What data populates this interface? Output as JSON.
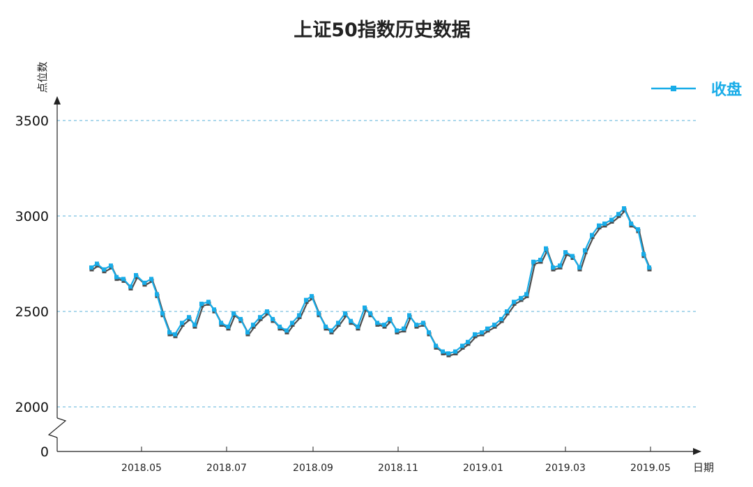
{
  "colors": {
    "series": "#18ace8",
    "shadow": "#4d4d4d",
    "grid": "#5ab2d8",
    "axis": "#222222"
  },
  "chart_data": {
    "type": "line",
    "title": "上证50指数历史数据",
    "ylabel": "点位数",
    "xlabel": "日期",
    "ylim": [
      0,
      3700
    ],
    "y_axis_break": true,
    "y_ticks": [
      0,
      2000,
      2500,
      3000,
      3500
    ],
    "x_ticks": [
      "2018.05",
      "2018.07",
      "2018.09",
      "2018.11",
      "2019.01",
      "2019.03",
      "2019.05"
    ],
    "grid": "horizontal dashed",
    "legend": "top-right",
    "series": [
      {
        "name": "收盘",
        "x": [
          "2018.03.26",
          "2018.03.30",
          "2018.04.04",
          "2018.04.09",
          "2018.04.13",
          "2018.04.18",
          "2018.04.23",
          "2018.04.27",
          "2018.05.03",
          "2018.05.08",
          "2018.05.12",
          "2018.05.16",
          "2018.05.21",
          "2018.05.25",
          "2018.05.30",
          "2018.06.04",
          "2018.06.08",
          "2018.06.13",
          "2018.06.18",
          "2018.06.22",
          "2018.06.27",
          "2018.07.02",
          "2018.07.06",
          "2018.07.11",
          "2018.07.16",
          "2018.07.20",
          "2018.07.25",
          "2018.07.30",
          "2018.08.03",
          "2018.08.08",
          "2018.08.13",
          "2018.08.17",
          "2018.08.22",
          "2018.08.27",
          "2018.08.31",
          "2018.09.05",
          "2018.09.10",
          "2018.09.14",
          "2018.09.19",
          "2018.09.24",
          "2018.09.28",
          "2018.10.03",
          "2018.10.08",
          "2018.10.12",
          "2018.10.17",
          "2018.10.22",
          "2018.10.26",
          "2018.10.31",
          "2018.11.05",
          "2018.11.09",
          "2018.11.14",
          "2018.11.19",
          "2018.11.23",
          "2018.11.28",
          "2018.12.03",
          "2018.12.07",
          "2018.12.12",
          "2018.12.17",
          "2018.12.21",
          "2018.12.26",
          "2018.12.31",
          "2019.01.04",
          "2019.01.09",
          "2019.01.14",
          "2019.01.18",
          "2019.01.23",
          "2019.01.28",
          "2019.02.01",
          "2019.02.06",
          "2019.02.11",
          "2019.02.15",
          "2019.02.20",
          "2019.02.25",
          "2019.03.01",
          "2019.03.06",
          "2019.03.11",
          "2019.03.15",
          "2019.03.20",
          "2019.03.25",
          "2019.03.29",
          "2019.04.03",
          "2019.04.08",
          "2019.04.12",
          "2019.04.17",
          "2019.04.22",
          "2019.04.26",
          "2019.04.30"
        ],
        "values": [
          2730,
          2750,
          2720,
          2740,
          2680,
          2670,
          2630,
          2690,
          2650,
          2670,
          2590,
          2490,
          2390,
          2380,
          2440,
          2470,
          2430,
          2540,
          2550,
          2510,
          2440,
          2420,
          2490,
          2460,
          2390,
          2430,
          2470,
          2500,
          2460,
          2420,
          2400,
          2440,
          2480,
          2560,
          2580,
          2490,
          2420,
          2400,
          2440,
          2490,
          2450,
          2420,
          2520,
          2490,
          2440,
          2430,
          2460,
          2400,
          2410,
          2480,
          2430,
          2440,
          2390,
          2320,
          2290,
          2280,
          2290,
          2320,
          2340,
          2380,
          2390,
          2410,
          2430,
          2460,
          2500,
          2550,
          2570,
          2590,
          2760,
          2770,
          2830,
          2730,
          2740,
          2810,
          2790,
          2730,
          2820,
          2900,
          2950,
          2960,
          2980,
          3010,
          3040,
          2960,
          2930,
          2800,
          2730
        ]
      }
    ]
  }
}
